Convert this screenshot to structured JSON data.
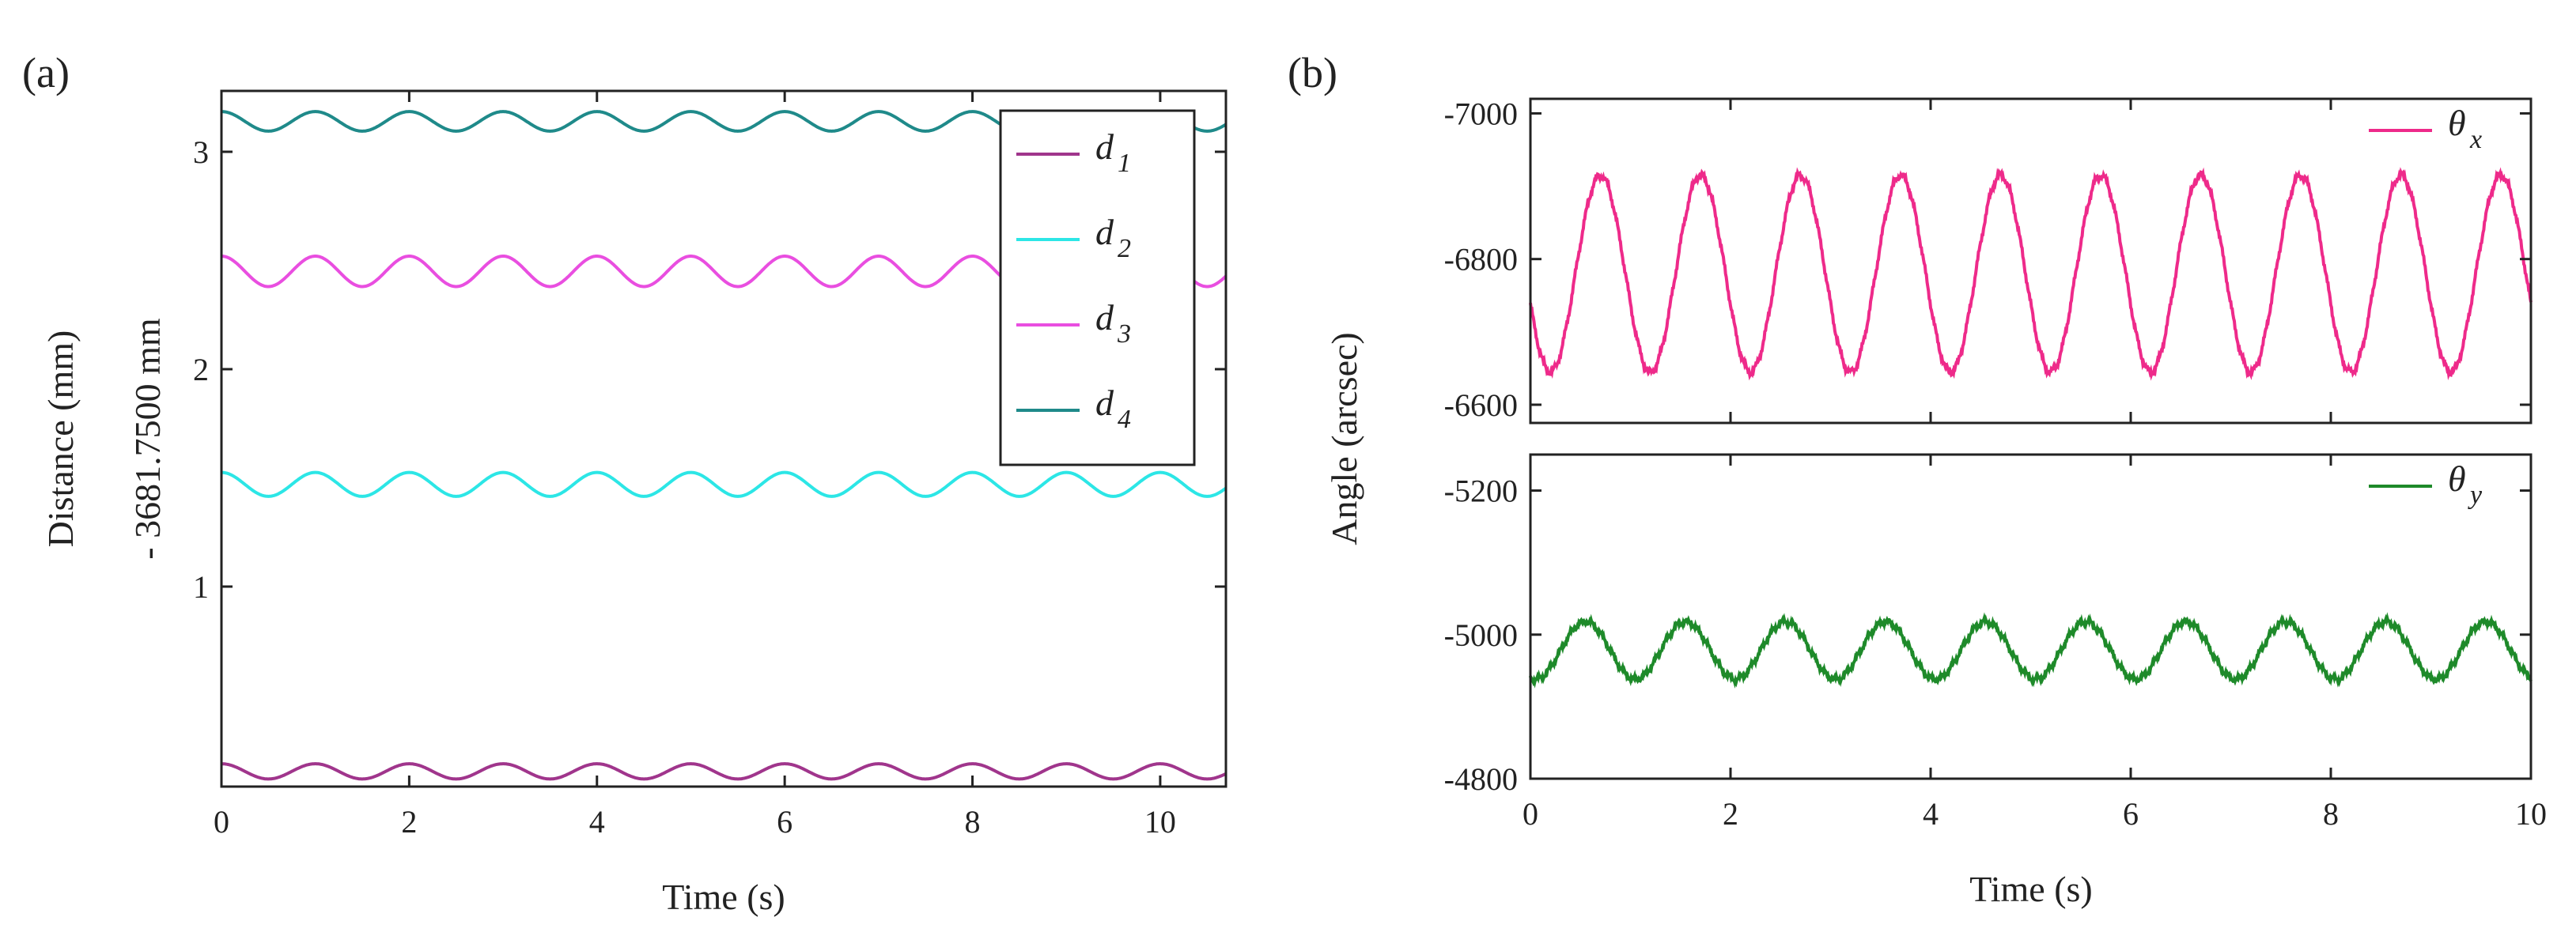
{
  "chart_data": [
    {
      "panel_label": "(a)",
      "type": "line",
      "title": "",
      "xlabel": "Time (s)",
      "ylabel_lines": [
        "Distance (mm)",
        "- 3681.7500 mm"
      ],
      "xlim": [
        0,
        10.7
      ],
      "ylim": [
        0.08,
        3.28
      ],
      "xticks": [
        0,
        2,
        4,
        6,
        8,
        10
      ],
      "xtick_labels": [
        "0",
        "2",
        "4",
        "6",
        "8",
        "10"
      ],
      "yticks": [
        1,
        2,
        3
      ],
      "ytick_labels": [
        "1",
        "2",
        "3"
      ],
      "legend_position": "top-right",
      "series": [
        {
          "name": "d",
          "sub": "1",
          "color": "#a0358c",
          "mean": 0.15,
          "amplitude": 0.035,
          "period": 1.0,
          "phase": 0.0
        },
        {
          "name": "d",
          "sub": "2",
          "color": "#2ce6e6",
          "mean": 1.47,
          "amplitude": 0.055,
          "period": 1.0,
          "phase": 0.0
        },
        {
          "name": "d",
          "sub": "3",
          "color": "#e94ee0",
          "mean": 2.45,
          "amplitude": 0.07,
          "period": 1.0,
          "phase": 0.0
        },
        {
          "name": "d",
          "sub": "4",
          "color": "#1f8a8a",
          "mean": 3.14,
          "amplitude": 0.045,
          "period": 1.0,
          "phase": 0.0
        }
      ]
    },
    {
      "panel_label": "(b)",
      "type": "line",
      "title": "",
      "xlabel": "Time (s)",
      "ylabel": "Angle (arcsec)",
      "xlim": [
        0,
        10
      ],
      "xticks": [
        0,
        2,
        4,
        6,
        8,
        10
      ],
      "xtick_labels": [
        "0",
        "2",
        "4",
        "6",
        "8",
        "10"
      ],
      "subplots": [
        {
          "ylim": [
            -6575,
            -7020
          ],
          "yticks": [
            -7000,
            -6800,
            -6600
          ],
          "ytick_labels": [
            "-7000",
            "-6800",
            "-6600"
          ],
          "legend_position": "top-right",
          "series": [
            {
              "name": "θ",
              "sub": "x",
              "color": "#ee2a8a",
              "mean": -6780,
              "amplitude": 135,
              "period": 1.0,
              "phase": -0.2,
              "noise": 6
            }
          ]
        },
        {
          "ylim": [
            -4800,
            -5250
          ],
          "yticks": [
            -5200,
            -5000,
            -4800
          ],
          "ytick_labels": [
            "-5200",
            "-5000",
            "-4800"
          ],
          "legend_position": "top-right",
          "series": [
            {
              "name": "θ",
              "sub": "y",
              "color": "#1e8a2a",
              "mean": -4978,
              "amplitude": 40,
              "period": 1.0,
              "phase": -0.05,
              "noise": 5
            }
          ]
        }
      ]
    }
  ]
}
